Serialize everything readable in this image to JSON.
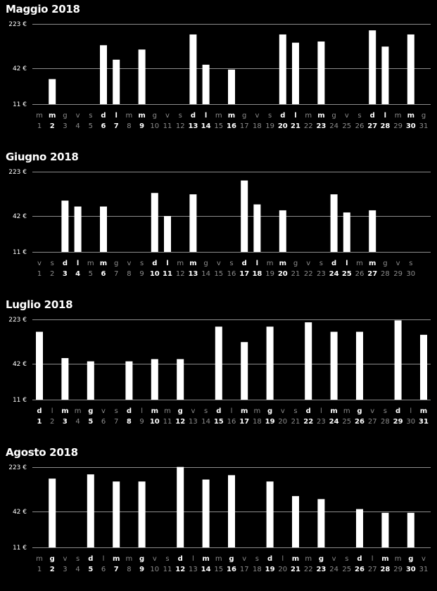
{
  "chart_data": [
    {
      "type": "bar",
      "title": "Maggio 2018",
      "y_ticks": [
        "223 €",
        "42 €",
        "11 €"
      ],
      "ylim": [
        11,
        223
      ],
      "weekdays": [
        "m",
        "m",
        "g",
        "v",
        "s",
        "d",
        "l",
        "m",
        "m",
        "g",
        "v",
        "s",
        "d",
        "l",
        "m",
        "m",
        "g",
        "v",
        "s",
        "d",
        "l",
        "m",
        "m",
        "g",
        "v",
        "s",
        "d",
        "l",
        "m",
        "m",
        "g"
      ],
      "days": [
        "1",
        "2",
        "3",
        "4",
        "5",
        "6",
        "7",
        "8",
        "9",
        "10",
        "11",
        "12",
        "13",
        "14",
        "15",
        "16",
        "17",
        "18",
        "19",
        "20",
        "21",
        "22",
        "23",
        "24",
        "25",
        "26",
        "27",
        "28",
        "29",
        "30",
        "31"
      ],
      "values": [
        null,
        28,
        null,
        null,
        null,
        100,
        58,
        null,
        85,
        null,
        null,
        null,
        150,
        48,
        null,
        40,
        null,
        null,
        null,
        150,
        110,
        null,
        115,
        null,
        null,
        null,
        175,
        95,
        null,
        150,
        null
      ],
      "color": "#ffffff"
    },
    {
      "type": "bar",
      "title": "Giugno 2018",
      "y_ticks": [
        "223 €",
        "42 €",
        "11 €"
      ],
      "ylim": [
        11,
        223
      ],
      "weekdays": [
        "v",
        "s",
        "d",
        "l",
        "m",
        "m",
        "g",
        "v",
        "s",
        "d",
        "l",
        "m",
        "m",
        "g",
        "v",
        "s",
        "d",
        "l",
        "m",
        "m",
        "g",
        "v",
        "s",
        "d",
        "l",
        "m",
        "m",
        "g",
        "v",
        "s"
      ],
      "days": [
        "1",
        "2",
        "3",
        "4",
        "5",
        "6",
        "7",
        "8",
        "9",
        "10",
        "11",
        "12",
        "13",
        "14",
        "15",
        "16",
        "17",
        "18",
        "19",
        "20",
        "21",
        "22",
        "23",
        "24",
        "25",
        "26",
        "27",
        "28",
        "29",
        "30"
      ],
      "values": [
        null,
        null,
        75,
        60,
        null,
        60,
        null,
        null,
        null,
        100,
        42,
        null,
        95,
        null,
        null,
        null,
        160,
        65,
        null,
        52,
        null,
        null,
        null,
        95,
        48,
        null,
        52,
        null,
        null,
        null
      ],
      "color": "#ffffff"
    },
    {
      "type": "bar",
      "title": "Luglio 2018",
      "y_ticks": [
        "223 €",
        "42 €",
        "11 €"
      ],
      "ylim": [
        11,
        223
      ],
      "weekdays": [
        "d",
        "l",
        "m",
        "m",
        "g",
        "v",
        "s",
        "d",
        "l",
        "m",
        "m",
        "g",
        "v",
        "s",
        "d",
        "l",
        "m",
        "m",
        "g",
        "v",
        "s",
        "d",
        "l",
        "m",
        "m",
        "g",
        "v",
        "s",
        "d",
        "l",
        "m"
      ],
      "days": [
        "1",
        "2",
        "3",
        "4",
        "5",
        "6",
        "7",
        "8",
        "9",
        "10",
        "11",
        "12",
        "13",
        "14",
        "15",
        "16",
        "17",
        "18",
        "19",
        "20",
        "21",
        "22",
        "23",
        "24",
        "25",
        "26",
        "27",
        "28",
        "29",
        "30",
        "31"
      ],
      "values": [
        140,
        null,
        52,
        null,
        46,
        null,
        null,
        46,
        null,
        50,
        null,
        50,
        null,
        null,
        170,
        null,
        95,
        null,
        170,
        null,
        null,
        200,
        null,
        140,
        null,
        140,
        null,
        null,
        215,
        null,
        125
      ],
      "color": "#ffffff"
    },
    {
      "type": "bar",
      "title": "Agosto 2018",
      "y_ticks": [
        "223 €",
        "42 €",
        "11 €"
      ],
      "ylim": [
        11,
        223
      ],
      "weekdays": [
        "m",
        "g",
        "v",
        "s",
        "d",
        "l",
        "m",
        "m",
        "g",
        "v",
        "s",
        "d",
        "l",
        "m",
        "m",
        "g",
        "v",
        "s",
        "d",
        "l",
        "m",
        "m",
        "g",
        "v",
        "s",
        "d",
        "l",
        "m",
        "m",
        "g",
        "v"
      ],
      "days": [
        "1",
        "2",
        "3",
        "4",
        "5",
        "6",
        "7",
        "8",
        "9",
        "10",
        "11",
        "12",
        "13",
        "14",
        "15",
        "16",
        "17",
        "18",
        "19",
        "20",
        "21",
        "22",
        "23",
        "24",
        "25",
        "26",
        "27",
        "28",
        "29",
        "30",
        "31"
      ],
      "values": [
        null,
        145,
        null,
        null,
        170,
        null,
        130,
        null,
        130,
        null,
        null,
        225,
        null,
        140,
        null,
        165,
        null,
        null,
        130,
        null,
        75,
        null,
        67,
        null,
        null,
        46,
        null,
        40,
        null,
        40,
        null
      ],
      "color": "#ffffff"
    }
  ]
}
